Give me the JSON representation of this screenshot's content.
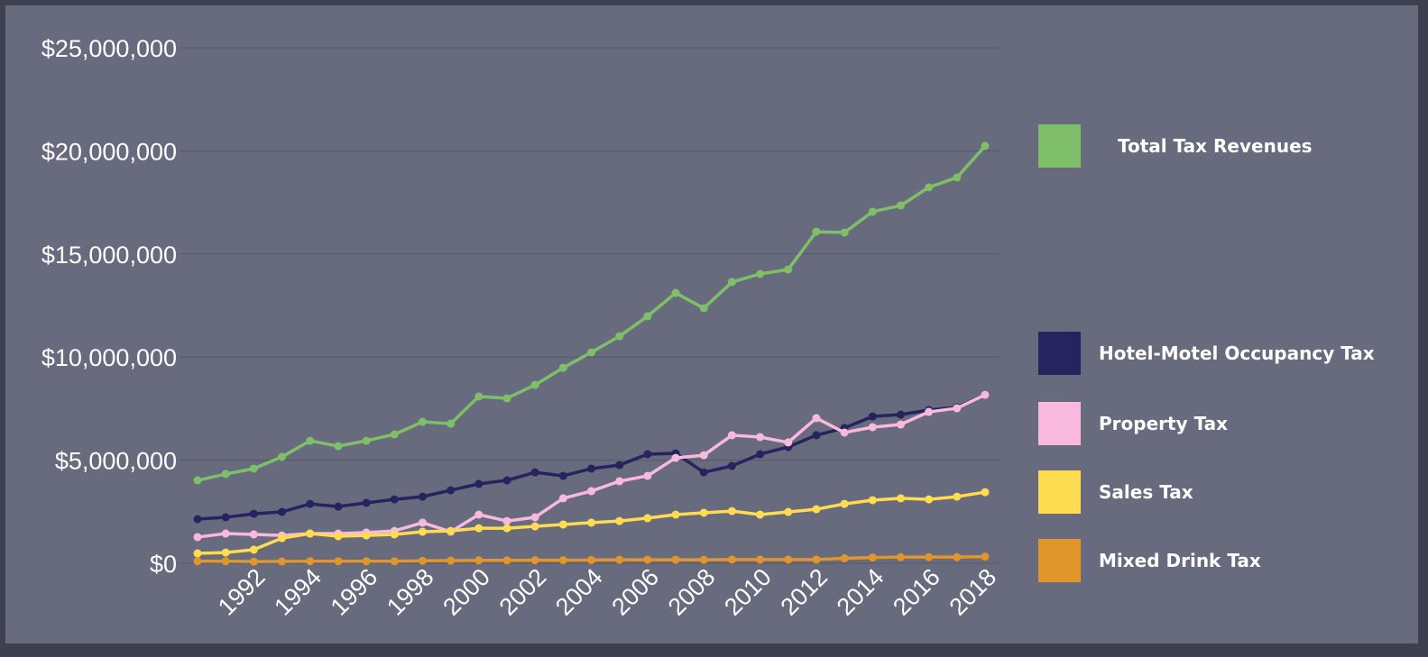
{
  "chart_data": {
    "type": "line",
    "x": [
      1990,
      1991,
      1992,
      1993,
      1994,
      1995,
      1996,
      1997,
      1998,
      1999,
      2000,
      2001,
      2002,
      2003,
      2004,
      2005,
      2006,
      2007,
      2008,
      2009,
      2010,
      2011,
      2012,
      2013,
      2014,
      2015,
      2016,
      2017,
      2018
    ],
    "xlim": [
      1990,
      2018
    ],
    "xticks": [
      1992,
      1994,
      1996,
      1998,
      2000,
      2002,
      2004,
      2006,
      2008,
      2010,
      2012,
      2014,
      2016,
      2018
    ],
    "ylim": [
      0,
      25000000
    ],
    "yticks": [
      {
        "value": 0,
        "label": "$0"
      },
      {
        "value": 5000000,
        "label": "$5,000,000"
      },
      {
        "value": 10000000,
        "label": "$10,000,000"
      },
      {
        "value": 15000000,
        "label": "$15,000,000"
      },
      {
        "value": 20000000,
        "label": "$20,000,000"
      },
      {
        "value": 25000000,
        "label": "$25,000,000"
      }
    ],
    "grid": true,
    "legend": "right",
    "series": [
      {
        "name": "Total Tax Revenues",
        "color": "#7fbf6a",
        "values": [
          4020000,
          4330000,
          4590000,
          5160000,
          5940000,
          5680000,
          5940000,
          6250000,
          6860000,
          6770000,
          8090000,
          8000000,
          8650000,
          9480000,
          10230000,
          11010000,
          11980000,
          13110000,
          12370000,
          13640000,
          14030000,
          14250000,
          16080000,
          16040000,
          17050000,
          17350000,
          18230000,
          18710000,
          20240000
        ]
      },
      {
        "name": "Hotel-Motel Occupancy Tax",
        "color": "#25245e",
        "values": [
          2140000,
          2230000,
          2400000,
          2490000,
          2880000,
          2750000,
          2930000,
          3100000,
          3230000,
          3540000,
          3850000,
          4020000,
          4410000,
          4240000,
          4590000,
          4760000,
          5290000,
          5330000,
          4410000,
          4720000,
          5290000,
          5640000,
          6210000,
          6560000,
          7120000,
          7210000,
          7430000,
          7560000,
          8170000
        ]
      },
      {
        "name": "Property Tax",
        "color": "#f9b9de",
        "values": [
          1270000,
          1440000,
          1400000,
          1350000,
          1440000,
          1440000,
          1490000,
          1570000,
          1970000,
          1530000,
          2360000,
          2050000,
          2230000,
          3150000,
          3500000,
          3980000,
          4240000,
          5110000,
          5240000,
          6210000,
          6120000,
          5860000,
          7040000,
          6340000,
          6600000,
          6730000,
          7340000,
          7520000,
          8170000
        ]
      },
      {
        "name": "Sales Tax",
        "color": "#fddc52",
        "values": [
          480000,
          520000,
          660000,
          1220000,
          1440000,
          1310000,
          1350000,
          1400000,
          1530000,
          1570000,
          1700000,
          1700000,
          1790000,
          1880000,
          1970000,
          2050000,
          2190000,
          2360000,
          2450000,
          2530000,
          2360000,
          2490000,
          2620000,
          2880000,
          3060000,
          3150000,
          3100000,
          3230000,
          3450000
        ]
      },
      {
        "name": "Mixed Drink Tax",
        "color": "#e0962b",
        "values": [
          100000,
          100000,
          80000,
          90000,
          100000,
          100000,
          100000,
          100000,
          120000,
          130000,
          140000,
          140000,
          150000,
          150000,
          160000,
          170000,
          170000,
          170000,
          170000,
          180000,
          180000,
          180000,
          180000,
          240000,
          280000,
          300000,
          300000,
          300000,
          320000
        ]
      }
    ]
  }
}
